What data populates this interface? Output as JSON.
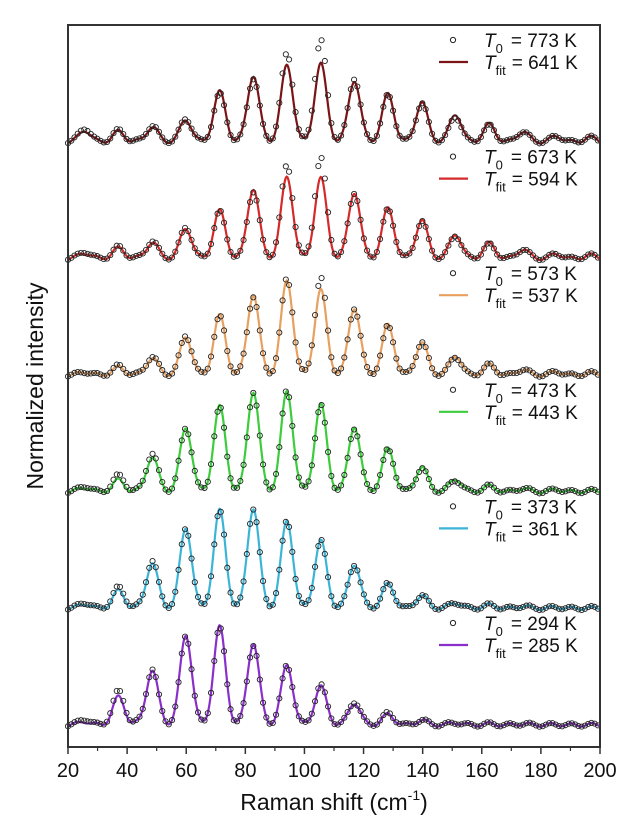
{
  "chart_data": {
    "type": "line",
    "title": "",
    "xlabel": "Raman shift (cm",
    "xlabel_sup": "-1",
    "xlabel_close": ")",
    "ylabel": "Normalized intensity",
    "xlim": [
      20,
      200
    ],
    "x_ticks": [
      20,
      40,
      60,
      80,
      100,
      120,
      140,
      160,
      180,
      200
    ],
    "x_tick_labels": [
      "20",
      "40",
      "60",
      "80",
      "100",
      "120",
      "140",
      "160",
      "180",
      "200"
    ],
    "x_minor_step": 10,
    "y_ticks_visible": false,
    "grid": false,
    "layout": "stacked",
    "peak_positions": [
      25.7,
      37.1,
      48.5,
      59.9,
      71.3,
      82.7,
      94.1,
      105.5,
      116.9,
      128.3,
      139.7,
      151.1,
      162.5,
      173.9,
      185.3,
      196.7
    ],
    "peak_width_sigma": 2.0,
    "legend_placement": "top-right of each panel",
    "series": [
      {
        "name": "773 K",
        "offset": 5,
        "color": "#7a1416",
        "legend_T0_symbol": "T",
        "legend_T0_sub": "0",
        "legend_T0_value": "= 773 K",
        "legend_Tfit_symbol": "T",
        "legend_Tfit_sub": "fit",
        "legend_Tfit_value": "= 641 K",
        "fit_amplitudes": [
          0.1,
          0.09,
          0.13,
          0.19,
          0.43,
          0.57,
          0.66,
          0.67,
          0.53,
          0.41,
          0.34,
          0.24,
          0.15,
          0.09,
          0.05,
          0.04
        ],
        "data_amplitudes": [
          0.12,
          0.1,
          0.14,
          0.2,
          0.41,
          0.55,
          0.76,
          0.87,
          0.55,
          0.4,
          0.33,
          0.22,
          0.14,
          0.09,
          0.05,
          0.04
        ]
      },
      {
        "name": "673 K",
        "offset": 4,
        "color": "#d42a2a",
        "legend_T0_symbol": "T",
        "legend_T0_sub": "0",
        "legend_T0_value": "= 673 K",
        "legend_Tfit_symbol": "T",
        "legend_Tfit_sub": "fit",
        "legend_Tfit_value": "= 594 K",
        "fit_amplitudes": [
          0.05,
          0.09,
          0.14,
          0.26,
          0.41,
          0.6,
          0.7,
          0.69,
          0.57,
          0.43,
          0.33,
          0.21,
          0.13,
          0.08,
          0.04,
          0.03
        ],
        "data_amplitudes": [
          0.06,
          0.1,
          0.15,
          0.27,
          0.4,
          0.58,
          0.8,
          0.86,
          0.57,
          0.42,
          0.32,
          0.2,
          0.12,
          0.08,
          0.04,
          0.03
        ]
      },
      {
        "name": "573 K",
        "offset": 3,
        "color": "#e8a060",
        "legend_T0_symbol": "T",
        "legend_T0_sub": "0",
        "legend_T0_value": "= 573 K",
        "legend_Tfit_symbol": "T",
        "legend_Tfit_sub": "fit",
        "legend_Tfit_value": "= 537 K",
        "fit_amplitudes": [
          0.03,
          0.07,
          0.15,
          0.33,
          0.51,
          0.69,
          0.81,
          0.73,
          0.58,
          0.43,
          0.28,
          0.17,
          0.09,
          0.05,
          0.03,
          0.02
        ],
        "data_amplitudes": [
          0.03,
          0.08,
          0.16,
          0.34,
          0.5,
          0.68,
          0.83,
          0.83,
          0.58,
          0.42,
          0.28,
          0.16,
          0.09,
          0.05,
          0.03,
          0.02
        ]
      },
      {
        "name": "473 K",
        "offset": 2,
        "color": "#3ccc3c",
        "legend_T0_symbol": "T",
        "legend_T0_sub": "0",
        "legend_T0_value": "= 473 K",
        "legend_Tfit_symbol": "T",
        "legend_Tfit_sub": "fit",
        "legend_Tfit_value": "= 443 K",
        "fit_amplitudes": [
          0.04,
          0.1,
          0.3,
          0.55,
          0.73,
          0.86,
          0.86,
          0.75,
          0.56,
          0.37,
          0.21,
          0.11,
          0.05,
          0.03,
          0.02,
          0.01
        ],
        "data_amplitudes": [
          0.05,
          0.14,
          0.33,
          0.55,
          0.72,
          0.86,
          0.87,
          0.74,
          0.55,
          0.36,
          0.2,
          0.1,
          0.05,
          0.03,
          0.02,
          0.01
        ]
      },
      {
        "name": "373 K",
        "offset": 1,
        "color": "#3cb4d8",
        "legend_T0_symbol": "T",
        "legend_T0_sub": "0",
        "legend_T0_value": "= 373 K",
        "legend_Tfit_symbol": "T",
        "legend_Tfit_sub": "fit",
        "legend_Tfit_value": "= 361 K",
        "fit_amplitudes": [
          0.04,
          0.15,
          0.39,
          0.69,
          0.84,
          0.86,
          0.75,
          0.58,
          0.38,
          0.21,
          0.11,
          0.05,
          0.03,
          0.02,
          0.01,
          0.005
        ],
        "data_amplitudes": [
          0.05,
          0.18,
          0.41,
          0.69,
          0.83,
          0.86,
          0.75,
          0.58,
          0.38,
          0.21,
          0.11,
          0.05,
          0.03,
          0.02,
          0.01,
          0.005
        ]
      },
      {
        "name": "294 K",
        "offset": 0,
        "color": "#8a2fc9",
        "legend_T0_symbol": "T",
        "legend_T0_sub": "0",
        "legend_T0_value": "= 294 K",
        "legend_Tfit_symbol": "T",
        "legend_Tfit_sub": "fit",
        "legend_Tfit_value": "= 285 K",
        "fit_amplitudes": [
          0.03,
          0.24,
          0.47,
          0.77,
          0.84,
          0.7,
          0.51,
          0.33,
          0.19,
          0.09,
          0.04,
          0.02,
          0.01,
          0.01,
          0.004,
          0.003
        ],
        "data_amplitudes": [
          0.05,
          0.29,
          0.48,
          0.77,
          0.83,
          0.69,
          0.51,
          0.34,
          0.2,
          0.1,
          0.04,
          0.02,
          0.01,
          0.01,
          0.004,
          0.003
        ]
      }
    ]
  }
}
